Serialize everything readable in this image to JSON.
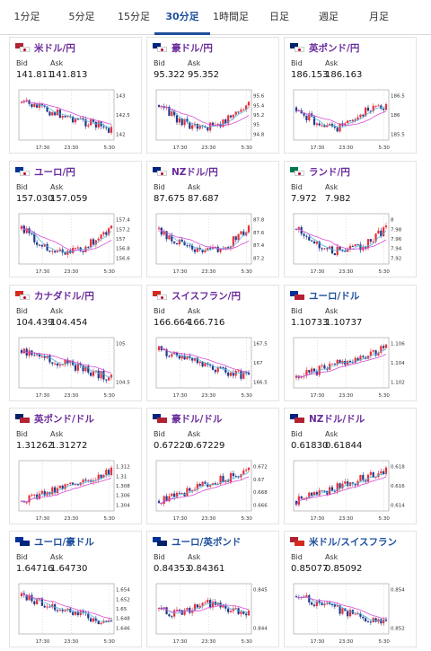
{
  "tabs": [
    {
      "label": "1分足",
      "active": false
    },
    {
      "label": "5分足",
      "active": false
    },
    {
      "label": "15分足",
      "active": false
    },
    {
      "label": "30分足",
      "active": true
    },
    {
      "label": "1時間足",
      "active": false
    },
    {
      "label": "日足",
      "active": false
    },
    {
      "label": "週足",
      "active": false
    },
    {
      "label": "月足",
      "active": false
    }
  ],
  "labels": {
    "bid": "Bid",
    "ask": "Ask"
  },
  "x_ticks": [
    "17:30",
    "23:30",
    "5:30"
  ],
  "colors": {
    "up": "#e8303a",
    "down": "#1f3a8c",
    "ma_short": "#5bb6e0",
    "ma_long": "#d64cd6",
    "accent": "#1d4f9c",
    "pair_text": "#6a2b9b"
  },
  "cards": [
    {
      "name": "米ドル/円",
      "name_color": "purple",
      "flag": "us-jp",
      "bid": "141.811",
      "ask": "141.813",
      "y_ticks": [
        "143",
        "142.5",
        "142"
      ],
      "trend": "down"
    },
    {
      "name": "豪ドル/円",
      "name_color": "purple",
      "flag": "au-jp",
      "bid": "95.322",
      "ask": "95.352",
      "y_ticks": [
        "95.6",
        "95.4",
        "95.2",
        "95",
        "94.8"
      ],
      "trend": "v"
    },
    {
      "name": "英ポンド/円",
      "name_color": "purple",
      "flag": "gb-jp",
      "bid": "186.153",
      "ask": "186.163",
      "y_ticks": [
        "186.5",
        "186",
        "185.5"
      ],
      "trend": "down_up"
    },
    {
      "name": "ユーロ/円",
      "name_color": "purple",
      "flag": "eu-jp",
      "bid": "157.030",
      "ask": "157.059",
      "y_ticks": [
        "157.4",
        "157.2",
        "157",
        "156.8",
        "156.6"
      ],
      "trend": "v"
    },
    {
      "name": "NZドル/円",
      "name_color": "purple",
      "flag": "nz-jp",
      "bid": "87.675",
      "ask": "87.687",
      "y_ticks": [
        "87.8",
        "87.6",
        "87.4",
        "87.2"
      ],
      "trend": "v"
    },
    {
      "name": "ランド/円",
      "name_color": "purple",
      "flag": "za-jp",
      "bid": "7.972",
      "ask": "7.982",
      "y_ticks": [
        "8",
        "7.98",
        "7.96",
        "7.94",
        "7.92"
      ],
      "trend": "v"
    },
    {
      "name": "カナダドル/円",
      "name_color": "purple",
      "flag": "ca-jp",
      "bid": "104.439",
      "ask": "104.454",
      "y_ticks": [
        "105",
        "104.5"
      ],
      "trend": "down"
    },
    {
      "name": "スイスフラン/円",
      "name_color": "purple",
      "flag": "ch-jp",
      "bid": "166.664",
      "ask": "166.716",
      "y_ticks": [
        "167.5",
        "167",
        "166.5"
      ],
      "trend": "down"
    },
    {
      "name": "ユーロ/ドル",
      "name_color": "blue",
      "flag": "eu-us",
      "bid": "1.10733",
      "ask": "1.10737",
      "y_ticks": [
        "1.106",
        "1.104",
        "1.102"
      ],
      "trend": "up"
    },
    {
      "name": "英ポンド/ドル",
      "name_color": "purple",
      "flag": "gb-us",
      "bid": "1.31262",
      "ask": "1.31272",
      "y_ticks": [
        "1.312",
        "1.31",
        "1.308",
        "1.306",
        "1.304"
      ],
      "trend": "up"
    },
    {
      "name": "豪ドル/ドル",
      "name_color": "purple",
      "flag": "au-us",
      "bid": "0.67220",
      "ask": "0.67229",
      "y_ticks": [
        "0.672",
        "0.67",
        "0.668",
        "0.666"
      ],
      "trend": "up"
    },
    {
      "name": "NZドル/ドル",
      "name_color": "purple",
      "flag": "nz-us",
      "bid": "0.61830",
      "ask": "0.61844",
      "y_ticks": [
        "0.618",
        "0.616",
        "0.614"
      ],
      "trend": "up"
    },
    {
      "name": "ユーロ/豪ドル",
      "name_color": "blue",
      "flag": "eu-au",
      "bid": "1.64716",
      "ask": "1.64730",
      "y_ticks": [
        "1.654",
        "1.652",
        "1.65",
        "1.648",
        "1.646"
      ],
      "trend": "down"
    },
    {
      "name": "ユーロ/英ポンド",
      "name_color": "blue",
      "flag": "eu-gb",
      "bid": "0.84353",
      "ask": "0.84361",
      "y_ticks": [
        "0.845",
        "0.844"
      ],
      "trend": "flat"
    },
    {
      "name": "米ドル/スイスフラン",
      "name_color": "blue",
      "flag": "us-ch",
      "bid": "0.85077",
      "ask": "0.85092",
      "y_ticks": [
        "0.854",
        "0.852"
      ],
      "trend": "down"
    }
  ]
}
